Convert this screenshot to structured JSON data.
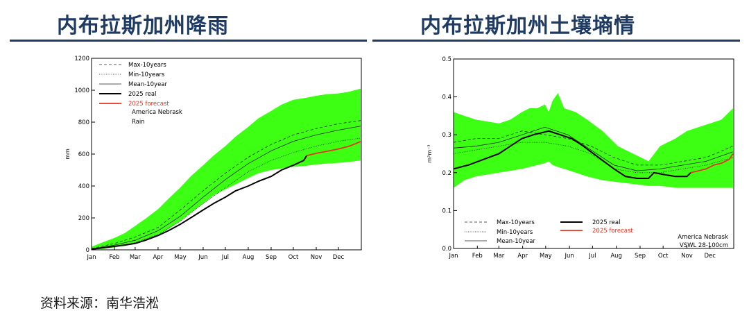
{
  "header": {
    "left_title": "内布拉斯加州降雨",
    "right_title": "内布拉斯加州土壤墒情"
  },
  "source": "资料来源：南华浩淞",
  "colors": {
    "band": "#3cff14",
    "real": "#000000",
    "forecast": "#e8321e",
    "title": "#1f3b63"
  },
  "chart_data": [
    {
      "type": "area",
      "ylabel": "mm",
      "xlabel": "",
      "months": [
        "Jan",
        "Feb",
        "Mar",
        "Apr",
        "May",
        "Jun",
        "Jul",
        "Aug",
        "Sep",
        "Oct",
        "Nov",
        "Dec"
      ],
      "ylim": [
        0,
        1200
      ],
      "yticks": [
        0,
        200,
        400,
        600,
        800,
        1000,
        1200
      ],
      "ytick_labels": [
        "0",
        "200",
        "400",
        "600",
        "800",
        "1000",
        "1200"
      ],
      "annotation": [
        "America Nebrask",
        "Rain"
      ],
      "legend_position": "top-left",
      "legend": [
        "Max-10years",
        "Min-10years",
        "Mean-10year",
        "2025 real",
        "2025 forecast"
      ],
      "x": [
        1,
        15,
        32,
        46,
        60,
        74,
        91,
        105,
        121,
        135,
        152,
        166,
        182,
        196,
        213,
        227,
        244,
        258,
        274,
        288,
        305,
        319,
        335,
        349,
        365
      ],
      "band_upper": [
        20,
        45,
        75,
        105,
        150,
        195,
        255,
        320,
        390,
        460,
        530,
        590,
        650,
        710,
        770,
        825,
        870,
        910,
        940,
        950,
        965,
        975,
        980,
        990,
        1010
      ],
      "band_lower": [
        0,
        5,
        15,
        25,
        40,
        60,
        90,
        130,
        180,
        230,
        290,
        340,
        380,
        410,
        450,
        480,
        500,
        510,
        520,
        525,
        535,
        540,
        545,
        550,
        560
      ],
      "series": [
        {
          "name": "Max-10years",
          "x": [
            1,
            32,
            60,
            91,
            121,
            152,
            182,
            213,
            244,
            274,
            305,
            335,
            365
          ],
          "values": [
            8,
            40,
            80,
            140,
            250,
            370,
            480,
            580,
            660,
            720,
            760,
            790,
            810
          ]
        },
        {
          "name": "Min-10years",
          "x": [
            1,
            32,
            60,
            91,
            121,
            152,
            182,
            213,
            244,
            274,
            305,
            335,
            365
          ],
          "values": [
            3,
            20,
            45,
            95,
            180,
            290,
            390,
            490,
            560,
            610,
            650,
            680,
            700
          ]
        },
        {
          "name": "Mean-10year",
          "x": [
            1,
            32,
            60,
            91,
            121,
            152,
            182,
            213,
            244,
            274,
            305,
            335,
            365
          ],
          "values": [
            5,
            30,
            60,
            120,
            210,
            330,
            440,
            540,
            620,
            680,
            720,
            750,
            775
          ]
        },
        {
          "name": "2025 real",
          "x": [
            1,
            15,
            32,
            46,
            60,
            74,
            91,
            105,
            121,
            135,
            152,
            166,
            182,
            196,
            213,
            227,
            244,
            258,
            274,
            288,
            292
          ],
          "values": [
            5,
            12,
            22,
            30,
            40,
            60,
            90,
            120,
            160,
            200,
            250,
            290,
            330,
            370,
            400,
            430,
            460,
            500,
            530,
            560,
            590
          ]
        },
        {
          "name": "2025 forecast",
          "x": [
            292,
            305,
            320,
            335,
            350,
            365
          ],
          "values": [
            590,
            605,
            618,
            632,
            650,
            678
          ]
        }
      ]
    },
    {
      "type": "area",
      "ylabel": "m³m⁻³",
      "xlabel": "",
      "months": [
        "Jan",
        "Feb",
        "Mar",
        "Apr",
        "May",
        "Jun",
        "Jul",
        "Aug",
        "Sep",
        "Oct",
        "Nov",
        "Dec"
      ],
      "ylim": [
        0,
        0.5
      ],
      "yticks": [
        0,
        0.1,
        0.2,
        0.3,
        0.4,
        0.5
      ],
      "ytick_labels": [
        "0.0",
        "0.1",
        "0.2",
        "0.3",
        "0.4",
        "0.5"
      ],
      "annotation": [
        "America Nebrask",
        "VSWL 28-100cm"
      ],
      "legend_position": "bottom-left",
      "legend": [
        "Max-10years",
        "Min-10years",
        "Mean-10year",
        "2025 real",
        "2025 forecast"
      ],
      "x": [
        1,
        15,
        30,
        45,
        60,
        75,
        90,
        100,
        110,
        120,
        125,
        130,
        137,
        145,
        160,
        175,
        195,
        215,
        235,
        255,
        270,
        290,
        305,
        320,
        335,
        350,
        360,
        365
      ],
      "band_upper": [
        0.36,
        0.35,
        0.34,
        0.335,
        0.33,
        0.34,
        0.36,
        0.37,
        0.37,
        0.38,
        0.36,
        0.39,
        0.41,
        0.37,
        0.36,
        0.34,
        0.31,
        0.27,
        0.25,
        0.23,
        0.27,
        0.29,
        0.31,
        0.32,
        0.33,
        0.34,
        0.36,
        0.37
      ],
      "band_lower": [
        0.16,
        0.18,
        0.19,
        0.195,
        0.2,
        0.205,
        0.21,
        0.215,
        0.22,
        0.225,
        0.23,
        0.22,
        0.215,
        0.21,
        0.2,
        0.19,
        0.18,
        0.175,
        0.17,
        0.165,
        0.165,
        0.16,
        0.16,
        0.16,
        0.16,
        0.16,
        0.16,
        0.16
      ],
      "series": [
        {
          "name": "Max-10years",
          "x": [
            1,
            30,
            60,
            90,
            120,
            150,
            180,
            210,
            240,
            270,
            300,
            330,
            365
          ],
          "values": [
            0.28,
            0.29,
            0.29,
            0.31,
            0.3,
            0.29,
            0.27,
            0.24,
            0.22,
            0.22,
            0.23,
            0.24,
            0.27
          ]
        },
        {
          "name": "Min-10years",
          "x": [
            1,
            30,
            60,
            90,
            120,
            150,
            180,
            210,
            240,
            270,
            300,
            330,
            365
          ],
          "values": [
            0.25,
            0.26,
            0.27,
            0.28,
            0.28,
            0.27,
            0.25,
            0.21,
            0.2,
            0.2,
            0.21,
            0.22,
            0.24
          ]
        },
        {
          "name": "Mean-10year",
          "x": [
            1,
            30,
            60,
            90,
            120,
            150,
            180,
            210,
            240,
            270,
            300,
            330,
            365
          ],
          "values": [
            0.265,
            0.27,
            0.28,
            0.3,
            0.32,
            0.3,
            0.26,
            0.22,
            0.205,
            0.21,
            0.22,
            0.23,
            0.255
          ]
        },
        {
          "name": "2025 real",
          "x": [
            1,
            20,
            40,
            60,
            75,
            90,
            105,
            115,
            125,
            140,
            155,
            170,
            190,
            210,
            225,
            240,
            255,
            262,
            275,
            290,
            305,
            310
          ],
          "values": [
            0.21,
            0.22,
            0.235,
            0.25,
            0.27,
            0.29,
            0.3,
            0.305,
            0.31,
            0.3,
            0.29,
            0.27,
            0.24,
            0.21,
            0.19,
            0.185,
            0.185,
            0.2,
            0.195,
            0.19,
            0.19,
            0.2
          ]
        },
        {
          "name": "2025 forecast",
          "x": [
            310,
            320,
            330,
            340,
            350,
            360,
            365
          ],
          "values": [
            0.2,
            0.205,
            0.21,
            0.22,
            0.225,
            0.235,
            0.25
          ]
        }
      ]
    }
  ]
}
